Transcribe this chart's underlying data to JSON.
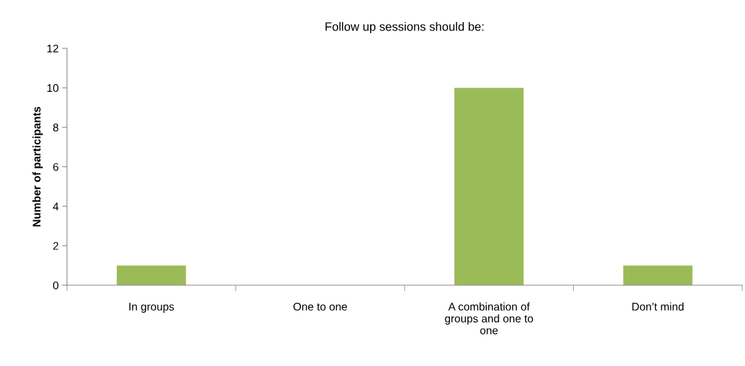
{
  "chart_data": {
    "type": "bar",
    "title": "Follow up sessions should be:",
    "ylabel": "Number of participants",
    "categories": [
      "In groups",
      "One to one",
      "A combination of groups and one to one",
      "Don’t mind"
    ],
    "values": [
      1,
      0,
      10,
      1
    ],
    "color": "#9bbb59",
    "ylim": [
      0,
      12
    ],
    "yticks": [
      0,
      2,
      4,
      6,
      8,
      10,
      12
    ],
    "grid": false,
    "legend": false
  }
}
